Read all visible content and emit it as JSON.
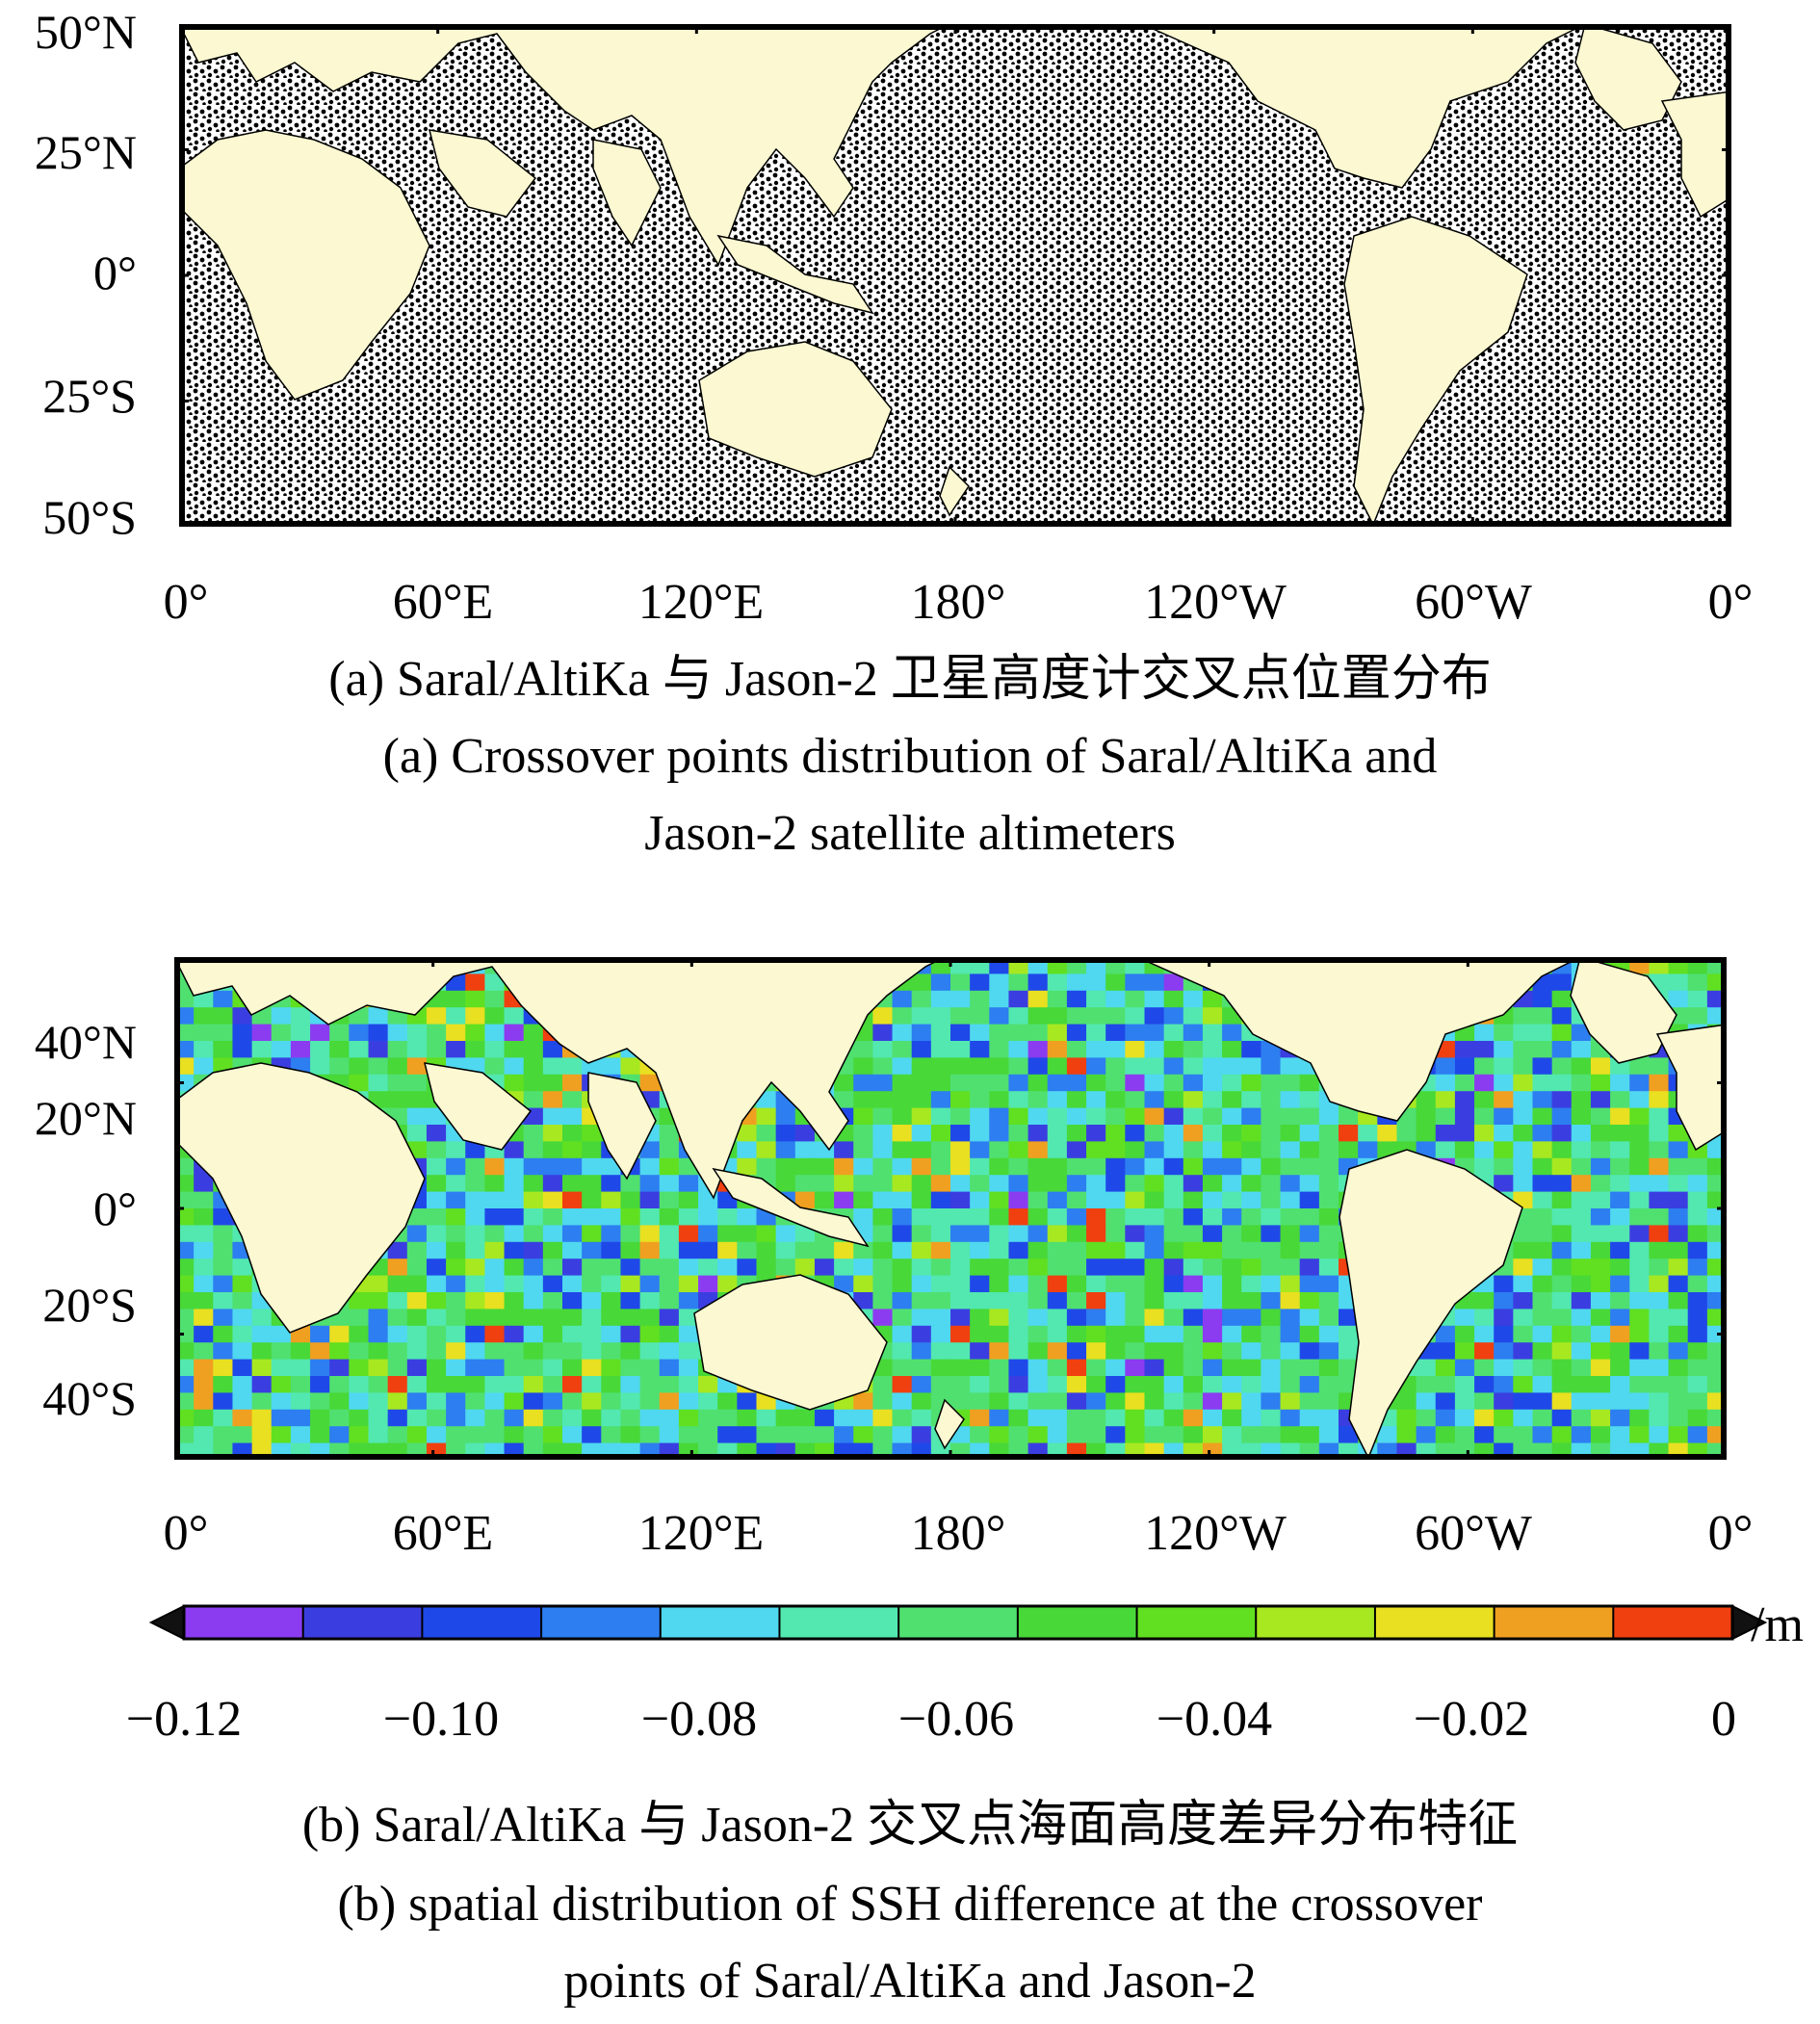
{
  "panel_a": {
    "lat_labels": [
      "50°N",
      "25°N",
      "0°",
      "25°S",
      "50°S"
    ],
    "lon_labels": [
      "0°",
      "60°E",
      "120°E",
      "180°",
      "120°W",
      "60°W",
      "0°"
    ],
    "caption_cn": "(a) Saral/AltiKa 与 Jason-2 卫星高度计交叉点位置分布",
    "caption_en_1": "(a) Crossover points distribution of Saral/AltiKa and",
    "caption_en_2": "Jason-2 satellite altimeters",
    "land_color": "#fbf8d2",
    "point_color": "#000000"
  },
  "panel_b": {
    "lat_labels": [
      "40°N",
      "20°N",
      "0°",
      "20°S",
      "40°S"
    ],
    "lon_labels": [
      "0°",
      "60°E",
      "120°E",
      "180°",
      "120°W",
      "60°W",
      "0°"
    ],
    "colorbar": {
      "unit": "/m",
      "tick_labels": [
        "−0.12",
        "−0.10",
        "−0.08",
        "−0.06",
        "−0.04",
        "−0.02",
        "0"
      ],
      "colors": [
        "#8b3cf0",
        "#3a3ee0",
        "#1f48e8",
        "#2d7ef0",
        "#4fd8f0",
        "#52e8b0",
        "#50e070",
        "#48d838",
        "#60e020",
        "#a8e820",
        "#e8e020",
        "#f0a020",
        "#f04010"
      ]
    },
    "caption_cn": "(b) Saral/AltiKa 与 Jason-2 交叉点海面高度差异分布特征",
    "caption_en_1": "(b) spatial distribution of SSH difference at the crossover",
    "caption_en_2": "points of Saral/AltiKa and Jason-2"
  }
}
